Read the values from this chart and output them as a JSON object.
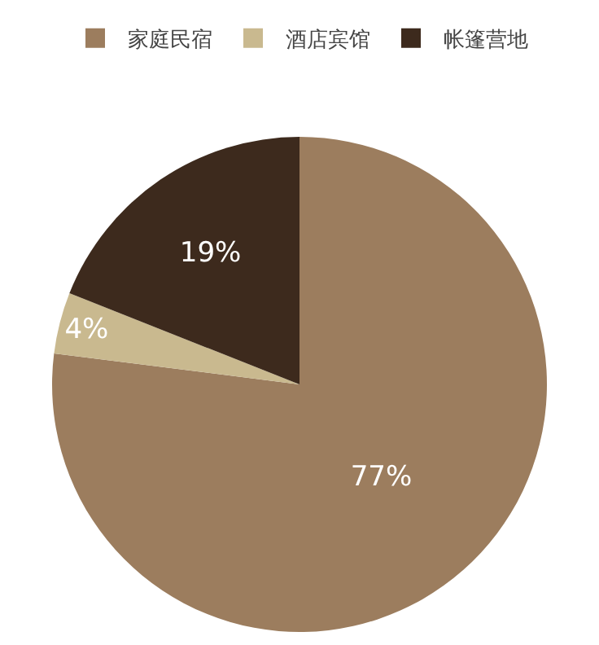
{
  "chart_data": {
    "type": "pie",
    "categories": [
      "家庭民宿",
      "酒店宾馆",
      "帐篷营地"
    ],
    "values": [
      77,
      4,
      19
    ],
    "colors": [
      "#9c7d5e",
      "#c9b98f",
      "#3d2a1d"
    ],
    "value_labels": [
      "77%",
      "4%",
      "19%"
    ],
    "legend": "top"
  }
}
